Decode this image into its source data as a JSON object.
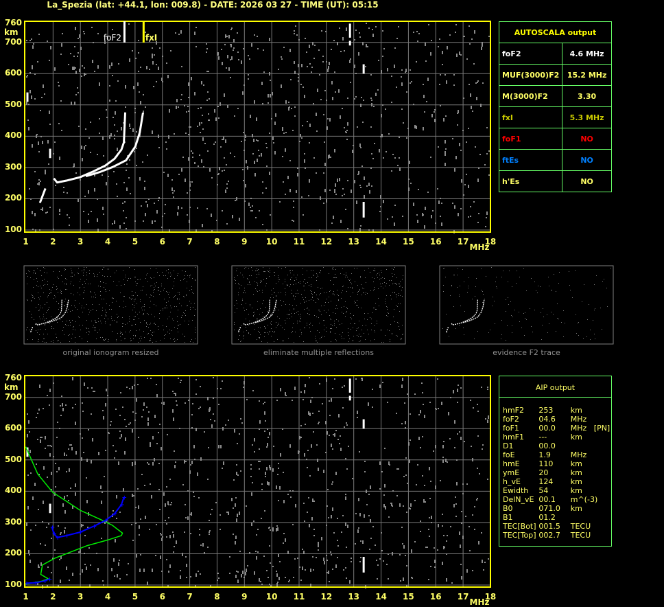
{
  "header": {
    "title": "La_Spezia (lat: +44.1, lon: 009.8) - DATE: 2026 03 27 - TIME (UT): 05:15"
  },
  "colors": {
    "frame": "#ffff00",
    "grid": "#7a7a7a",
    "noise": "#8c8c8c",
    "trace": "#ffffff",
    "aip_profile": "#00ee00",
    "aip_trace": "#0000ff",
    "table_border": "#66ff66"
  },
  "markers": {
    "foF2": {
      "label": "foF2",
      "freq": 4.6,
      "color": "#ffffff"
    },
    "fxI": {
      "label": "fxI",
      "freq": 5.3,
      "color": "#ffff00"
    }
  },
  "chart_data": [
    {
      "type": "scatter",
      "panel": "autoscala ionogram",
      "xlabel": "MHz",
      "ylabel": "km",
      "xlim": [
        1,
        18
      ],
      "ylim": [
        100,
        760
      ],
      "xticks": [
        "1",
        "2",
        "3",
        "4",
        "5",
        "6",
        "7",
        "8",
        "9",
        "10",
        "11",
        "12",
        "13",
        "14",
        "15",
        "16",
        "17",
        "18"
      ],
      "yticks": [
        "760",
        "700",
        "600",
        "500",
        "400",
        "300",
        "200",
        "100"
      ],
      "grid": true,
      "series": [
        {
          "role": "O-trace",
          "color": "#ffffff",
          "x": [
            2.03,
            2.15,
            2.49,
            2.99,
            3.49,
            3.91,
            4.25,
            4.5,
            4.59,
            4.64
          ],
          "y": [
            265,
            252,
            258,
            269,
            288,
            306,
            328,
            357,
            380,
            476
          ]
        },
        {
          "role": "X-trace",
          "color": "#ffffff",
          "x": [
            3.2,
            3.7,
            4.17,
            4.67,
            5.01,
            5.17,
            5.29
          ],
          "y": [
            272,
            285,
            301,
            323,
            367,
            411,
            475
          ]
        },
        {
          "role": "low-trace",
          "color": "#ffffff",
          "x": [
            1.52,
            1.62,
            1.72
          ],
          "y": [
            187,
            210,
            233
          ]
        }
      ]
    },
    {
      "type": "line",
      "panel": "AIP ionogram",
      "xlabel": "MHz",
      "ylabel": "km",
      "xlim": [
        1,
        18
      ],
      "ylim": [
        100,
        760
      ],
      "xticks": [
        "1",
        "2",
        "3",
        "4",
        "5",
        "6",
        "7",
        "8",
        "9",
        "10",
        "11",
        "12",
        "13",
        "14",
        "15",
        "16",
        "17",
        "18"
      ],
      "yticks": [
        "760",
        "700",
        "600",
        "500",
        "400",
        "300",
        "200",
        "100"
      ],
      "grid": true,
      "series": [
        {
          "role": "profile",
          "color": "#00ee00",
          "x": [
            1.0,
            1.44,
            1.98,
            2.99,
            3.75,
            4.17,
            4.54,
            4.5,
            4.0,
            3.25,
            2.07,
            1.61,
            1.55,
            1.82,
            1.57,
            1.0
          ],
          "y": [
            542,
            455,
            397,
            339,
            309,
            291,
            266,
            258,
            244,
            226,
            186,
            164,
            134,
            120,
            112,
            103
          ]
        },
        {
          "role": "recomputed-F-trace",
          "color": "#0000ff",
          "x": [
            1.96,
            2.03,
            2.15,
            2.49,
            2.99,
            3.49,
            3.91,
            4.25,
            4.5,
            4.59
          ],
          "y": [
            284,
            265,
            252,
            258,
            269,
            288,
            306,
            328,
            357,
            380
          ]
        },
        {
          "role": "recomputed-E-trace",
          "color": "#0000ff",
          "x": [
            1.02,
            1.35,
            1.69,
            1.86
          ],
          "y": [
            106,
            107,
            113,
            119
          ]
        }
      ]
    }
  ],
  "thumbnails": [
    {
      "caption": "original ionogram resized"
    },
    {
      "caption": "eliminate multiple reflections"
    },
    {
      "caption": "evidence F2 trace"
    }
  ],
  "autoscala": {
    "title": "AUTOSCALA output",
    "rows": [
      {
        "label": "foF2",
        "value": "4.6 MHz",
        "color": "#ffffff"
      },
      {
        "label": "MUF(3000)F2",
        "value": "15.2 MHz",
        "color": "#ffff66"
      },
      {
        "label": "M(3000)F2",
        "value": "3.30",
        "color": "#ffff66"
      },
      {
        "label": "fxI",
        "value": "5.3 MHz",
        "color": "#cccc00"
      },
      {
        "label": "foF1",
        "value": "NO",
        "color": "#ff0000"
      },
      {
        "label": "ftEs",
        "value": "NO",
        "color": "#0080ff"
      },
      {
        "label": "h'Es",
        "value": "NO",
        "color": "#ffff66"
      }
    ]
  },
  "aip": {
    "title": "AIP output",
    "rows": [
      [
        "hmF2",
        "253",
        "km"
      ],
      [
        "foF2",
        "04.6",
        "MHz"
      ],
      [
        "foF1",
        "00.0",
        "MHz   [PN]"
      ],
      [
        "hmF1",
        "---",
        "km"
      ],
      [
        "D1",
        "00.0",
        ""
      ],
      [
        "foE",
        "1.9",
        "MHz"
      ],
      [
        "hmE",
        "110",
        "km"
      ],
      [
        "ymE",
        "20",
        "km"
      ],
      [
        "h_vE",
        "124",
        "km"
      ],
      [
        "Ewidth",
        "54",
        "km"
      ],
      [
        "DelN_vE",
        "00.1",
        "m^(-3)"
      ],
      [
        "B0",
        "071.0",
        "km"
      ],
      [
        "B1",
        "01.2",
        ""
      ],
      [
        "TEC[Bot]",
        "001.5",
        "TECU"
      ],
      [
        "TEC[Top]",
        "002.7",
        "TECU"
      ]
    ]
  }
}
